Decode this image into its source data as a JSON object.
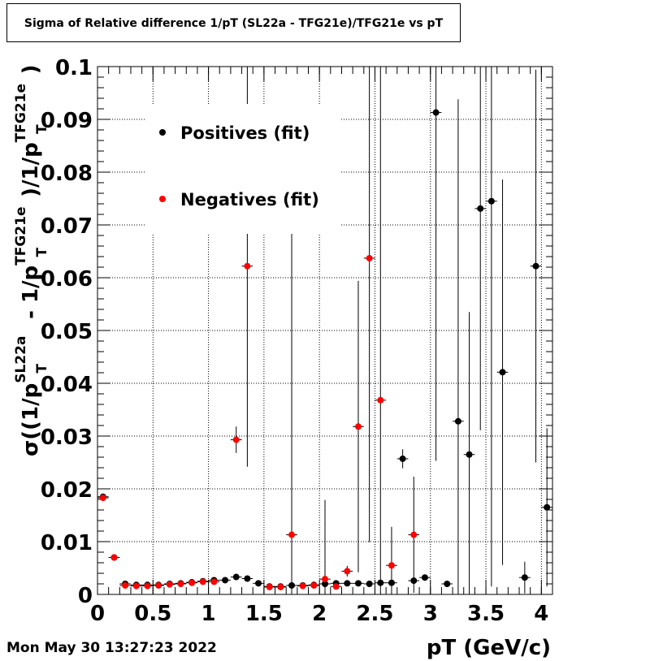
{
  "title": "Sigma of Relative difference 1/pT (SL22a - TFG21e)/TFG21e vs pT",
  "timestamp": "Mon May 30 13:27:23 2022",
  "chart_data": {
    "type": "scatter",
    "title": "Sigma of Relative difference 1/pT (SL22a - TFG21e)/TFG21e vs pT",
    "xlabel": "pT (GeV/c)",
    "ylabel": "σ((1/p_T^SL22a - 1/p_T^TFG21e)/1/p_T^TFG21e)",
    "xlim": [
      0,
      4.1
    ],
    "ylim": [
      0,
      0.1
    ],
    "x_ticks": [
      "0",
      "0.5",
      "1",
      "1.5",
      "2",
      "2.5",
      "3",
      "3.5",
      "4"
    ],
    "y_ticks": [
      "0",
      "0.01",
      "0.02",
      "0.03",
      "0.04",
      "0.05",
      "0.06",
      "0.07",
      "0.08",
      "0.09",
      "0.1"
    ],
    "grid": true,
    "legend_position": "top-left",
    "series": [
      {
        "name": "Positives (fit)",
        "color": "#000000",
        "points": [
          {
            "x": 0.05,
            "y": 0.0185,
            "err": 0.0006
          },
          {
            "x": 0.15,
            "y": 0.007,
            "err": 0.0004
          },
          {
            "x": 0.25,
            "y": 0.002,
            "err": 0.0003
          },
          {
            "x": 0.35,
            "y": 0.0018,
            "err": 0.0003
          },
          {
            "x": 0.45,
            "y": 0.0018,
            "err": 0.0003
          },
          {
            "x": 0.55,
            "y": 0.0018,
            "err": 0.0003
          },
          {
            "x": 0.65,
            "y": 0.002,
            "err": 0.0003
          },
          {
            "x": 0.75,
            "y": 0.0021,
            "err": 0.0003
          },
          {
            "x": 0.85,
            "y": 0.0023,
            "err": 0.0003
          },
          {
            "x": 0.95,
            "y": 0.0025,
            "err": 0.0003
          },
          {
            "x": 1.05,
            "y": 0.0027,
            "err": 0.0003
          },
          {
            "x": 1.15,
            "y": 0.0027,
            "err": 0.0003
          },
          {
            "x": 1.25,
            "y": 0.0033,
            "err": 0.0003
          },
          {
            "x": 1.35,
            "y": 0.003,
            "err": 0.0003
          },
          {
            "x": 1.45,
            "y": 0.0021,
            "err": 0.0003
          },
          {
            "x": 1.55,
            "y": 0.0015,
            "err": 0.0003
          },
          {
            "x": 1.65,
            "y": 0.0015,
            "err": 0.0003
          },
          {
            "x": 1.75,
            "y": 0.0017,
            "err": 0.0003
          },
          {
            "x": 1.85,
            "y": 0.0017,
            "err": 0.0003
          },
          {
            "x": 1.95,
            "y": 0.0018,
            "err": 0.0003
          },
          {
            "x": 2.05,
            "y": 0.002,
            "err": 0.0004
          },
          {
            "x": 2.15,
            "y": 0.0021,
            "err": 0.0004
          },
          {
            "x": 2.25,
            "y": 0.0021,
            "err": 0.0004
          },
          {
            "x": 2.35,
            "y": 0.0021,
            "err": 0.0004
          },
          {
            "x": 2.45,
            "y": 0.002,
            "err": 0.0004
          },
          {
            "x": 2.55,
            "y": 0.0022,
            "err": 0.0004
          },
          {
            "x": 2.65,
            "y": 0.0022,
            "err": 0.0004
          },
          {
            "x": 2.75,
            "y": 0.0257,
            "err": 0.0018
          },
          {
            "x": 2.85,
            "y": 0.0026,
            "err": 0.0005
          },
          {
            "x": 2.95,
            "y": 0.0032,
            "err": 0.0005
          },
          {
            "x": 3.05,
            "y": 0.0913,
            "err": 0.066
          },
          {
            "x": 3.15,
            "y": 0.002,
            "err": 0.0005
          },
          {
            "x": 3.25,
            "y": 0.0328,
            "err": 0.061
          },
          {
            "x": 3.35,
            "y": 0.0265,
            "err": 0.027
          },
          {
            "x": 3.45,
            "y": 0.0731,
            "err": 0.042
          },
          {
            "x": 3.55,
            "y": 0.0745,
            "err": 0.073
          },
          {
            "x": 3.65,
            "y": 0.0421,
            "err": 0.0365
          },
          {
            "x": 3.85,
            "y": 0.0032,
            "err": 0.003
          },
          {
            "x": 3.95,
            "y": 0.0622,
            "err": 0.0372
          },
          {
            "x": 4.05,
            "y": 0.0165,
            "err": 0.015
          }
        ]
      },
      {
        "name": "Negatives (fit)",
        "color": "#ff0000",
        "points": [
          {
            "x": 0.05,
            "y": 0.0183,
            "err": 0.0006
          },
          {
            "x": 0.15,
            "y": 0.007,
            "err": 0.0004
          },
          {
            "x": 0.25,
            "y": 0.0017,
            "err": 0.0003
          },
          {
            "x": 0.35,
            "y": 0.0016,
            "err": 0.0003
          },
          {
            "x": 0.45,
            "y": 0.0016,
            "err": 0.0003
          },
          {
            "x": 0.55,
            "y": 0.0017,
            "err": 0.0003
          },
          {
            "x": 0.65,
            "y": 0.0019,
            "err": 0.0003
          },
          {
            "x": 0.75,
            "y": 0.002,
            "err": 0.0003
          },
          {
            "x": 0.85,
            "y": 0.0022,
            "err": 0.0003
          },
          {
            "x": 0.95,
            "y": 0.0024,
            "err": 0.0003
          },
          {
            "x": 1.05,
            "y": 0.0024,
            "err": 0.0003
          },
          {
            "x": 1.25,
            "y": 0.0293,
            "err": 0.0025
          },
          {
            "x": 1.35,
            "y": 0.0622,
            "err": 0.038
          },
          {
            "x": 1.55,
            "y": 0.0014,
            "err": 0.0003
          },
          {
            "x": 1.65,
            "y": 0.0014,
            "err": 0.0003
          },
          {
            "x": 1.75,
            "y": 0.0113,
            "err": 0.0575
          },
          {
            "x": 1.85,
            "y": 0.0016,
            "err": 0.0003
          },
          {
            "x": 1.95,
            "y": 0.0017,
            "err": 0.0003
          },
          {
            "x": 2.05,
            "y": 0.0029,
            "err": 0.015
          },
          {
            "x": 2.15,
            "y": 0.0015,
            "err": 0.0004
          },
          {
            "x": 2.25,
            "y": 0.0044,
            "err": 0.001
          },
          {
            "x": 2.35,
            "y": 0.0318,
            "err": 0.0276
          },
          {
            "x": 2.45,
            "y": 0.0637,
            "err": 0.0538
          },
          {
            "x": 2.55,
            "y": 0.0368,
            "err": 0.0632
          },
          {
            "x": 2.65,
            "y": 0.0055,
            "err": 0.0073
          },
          {
            "x": 2.85,
            "y": 0.0113,
            "err": 0.011
          }
        ]
      }
    ]
  }
}
